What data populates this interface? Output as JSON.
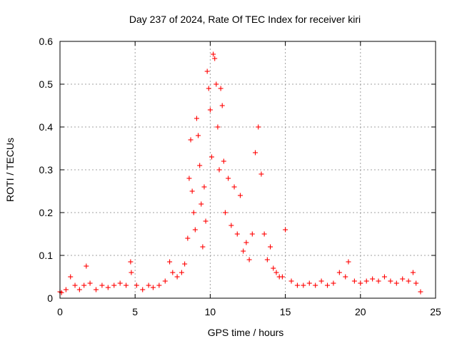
{
  "chart_data": {
    "type": "scatter",
    "title": "Day 237 of 2024, Rate Of TEC Index for receiver kiri",
    "xlabel": "GPS time / hours",
    "ylabel": "ROTI / TECUs",
    "xlim": [
      0,
      25
    ],
    "ylim": [
      0,
      0.6
    ],
    "xticks": [
      "0",
      "5",
      "10",
      "15",
      "20",
      "25"
    ],
    "yticks": [
      "0",
      "0.1",
      "0.2",
      "0.3",
      "0.4",
      "0.5",
      "0.6"
    ],
    "grid": true,
    "legend": "none",
    "marker": "plus",
    "color": "#ff0000",
    "series": [
      {
        "x": [
          0.0,
          0.1,
          0.4,
          0.7,
          1.0,
          1.3,
          1.6,
          1.75,
          2.0,
          2.4,
          2.8,
          3.2,
          3.6,
          4.0,
          4.4,
          4.7,
          4.75,
          5.1,
          5.5,
          5.9,
          6.2,
          6.6,
          7.0,
          7.3,
          7.5,
          7.8,
          8.1,
          8.3,
          8.5,
          8.6,
          8.7,
          8.8,
          8.9,
          9.0,
          9.1,
          9.2,
          9.3,
          9.4,
          9.5,
          9.6,
          9.7,
          9.8,
          9.9,
          10.0,
          10.1,
          10.2,
          10.3,
          10.4,
          10.5,
          10.6,
          10.7,
          10.8,
          10.9,
          11.0,
          11.2,
          11.4,
          11.6,
          11.8,
          12.0,
          12.2,
          12.4,
          12.6,
          12.8,
          13.0,
          13.2,
          13.4,
          13.6,
          13.8,
          14.0,
          14.2,
          14.4,
          14.6,
          14.8,
          15.0,
          15.4,
          15.8,
          16.2,
          16.6,
          17.0,
          17.4,
          17.8,
          18.2,
          18.6,
          19.0,
          19.2,
          19.6,
          20.0,
          20.4,
          20.8,
          21.2,
          21.6,
          22.0,
          22.4,
          22.8,
          23.2,
          23.5,
          23.7,
          24.0
        ],
        "y": [
          0.015,
          0.013,
          0.02,
          0.05,
          0.03,
          0.02,
          0.03,
          0.075,
          0.035,
          0.02,
          0.03,
          0.025,
          0.03,
          0.035,
          0.03,
          0.085,
          0.06,
          0.03,
          0.02,
          0.03,
          0.025,
          0.03,
          0.04,
          0.085,
          0.06,
          0.05,
          0.06,
          0.08,
          0.14,
          0.28,
          0.37,
          0.25,
          0.2,
          0.16,
          0.42,
          0.38,
          0.31,
          0.22,
          0.12,
          0.26,
          0.18,
          0.53,
          0.49,
          0.44,
          0.33,
          0.57,
          0.56,
          0.5,
          0.4,
          0.3,
          0.49,
          0.45,
          0.32,
          0.2,
          0.28,
          0.17,
          0.26,
          0.15,
          0.24,
          0.11,
          0.13,
          0.09,
          0.15,
          0.34,
          0.4,
          0.29,
          0.15,
          0.09,
          0.12,
          0.07,
          0.06,
          0.05,
          0.05,
          0.16,
          0.04,
          0.03,
          0.03,
          0.035,
          0.03,
          0.04,
          0.03,
          0.035,
          0.06,
          0.05,
          0.085,
          0.04,
          0.035,
          0.04,
          0.045,
          0.04,
          0.05,
          0.04,
          0.035,
          0.045,
          0.04,
          0.06,
          0.035,
          0.015
        ]
      }
    ]
  }
}
